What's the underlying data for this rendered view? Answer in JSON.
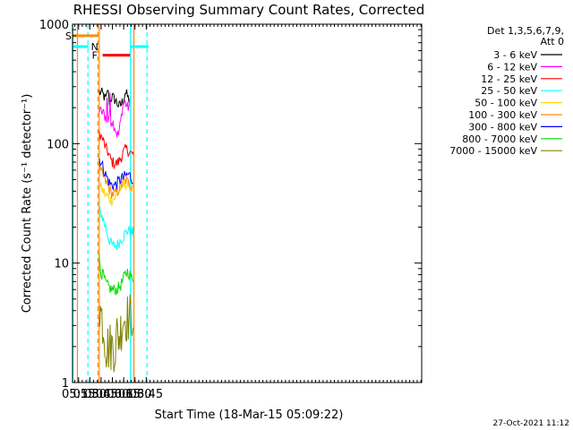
{
  "chart_data": {
    "type": "line",
    "title": "RHESSI Observing Summary Count Rates, Corrected",
    "xlabel": "Start Time (18-Mar-15 05:09:22)",
    "ylabel": "Corrected Count Rate (s⁻¹ detector⁻¹)",
    "yscale": "log",
    "xlim_min": [
      307,
      771
    ],
    "ylim": [
      1,
      1000
    ],
    "x_ticks": [
      {
        "label": "05:15",
        "min": 315
      },
      {
        "label": "05:30",
        "min": 330
      },
      {
        "label": "05:45",
        "min": 345
      },
      {
        "label": "06:00",
        "min": 360
      },
      {
        "label": "06:15",
        "min": 375
      },
      {
        "label": "06:30",
        "min": 390
      },
      {
        "label": "06:45",
        "min": 405
      }
    ],
    "y_ticks": [
      {
        "label": "1",
        "value": 1
      },
      {
        "label": "10",
        "value": 10
      },
      {
        "label": "100",
        "value": 100
      },
      {
        "label": "1000",
        "value": 1000
      }
    ],
    "legend_header": [
      "Det 1,3,5,6,7,9,",
      "Att 0"
    ],
    "series": [
      {
        "name": "3 - 6 keV",
        "color": "#000000",
        "points": [
          [
            342.5,
            270
          ],
          [
            345,
            265
          ],
          [
            348,
            255
          ],
          [
            350,
            240
          ],
          [
            352,
            235
          ],
          [
            354,
            290
          ],
          [
            356,
            225
          ],
          [
            358,
            240
          ],
          [
            360,
            245
          ],
          [
            363,
            235
          ],
          [
            366,
            220
          ],
          [
            369,
            205
          ],
          [
            372,
            215
          ],
          [
            375,
            235
          ],
          [
            377,
            270
          ],
          [
            379,
            255
          ],
          [
            381,
            240
          ],
          [
            383,
            230
          ]
        ]
      },
      {
        "name": "6 - 12 keV",
        "color": "#ff00ff",
        "points": [
          [
            342.5,
            185
          ],
          [
            345,
            185
          ],
          [
            348,
            180
          ],
          [
            350,
            170
          ],
          [
            352,
            165
          ],
          [
            353,
            250
          ],
          [
            354,
            160
          ],
          [
            356,
            175
          ],
          [
            357,
            240
          ],
          [
            358,
            155
          ],
          [
            360,
            155
          ],
          [
            363,
            140
          ],
          [
            366,
            120
          ],
          [
            368,
            118
          ],
          [
            370,
            140
          ],
          [
            372,
            170
          ],
          [
            374,
            215
          ],
          [
            376,
            225
          ],
          [
            378,
            215
          ],
          [
            380,
            200
          ],
          [
            382,
            205
          ],
          [
            383.5,
            230
          ]
        ]
      },
      {
        "name": "12 - 25 keV",
        "color": "#ff0000",
        "points": [
          [
            342.5,
            125
          ],
          [
            345,
            115
          ],
          [
            348,
            105
          ],
          [
            351,
            92
          ],
          [
            354,
            85
          ],
          [
            357,
            75
          ],
          [
            360,
            70
          ],
          [
            363,
            68
          ],
          [
            366,
            68
          ],
          [
            369,
            72
          ],
          [
            372,
            78
          ],
          [
            375,
            85
          ],
          [
            378,
            90
          ],
          [
            381,
            88
          ],
          [
            383.5,
            85
          ],
          [
            385,
            82
          ],
          [
            387,
            82
          ],
          [
            388.5,
            82
          ]
        ]
      },
      {
        "name": "25 - 50 keV",
        "color": "#00ffff",
        "points": [
          [
            342.5,
            28
          ],
          [
            345,
            26
          ],
          [
            348,
            23
          ],
          [
            351,
            20
          ],
          [
            354,
            17
          ],
          [
            357,
            15
          ],
          [
            360,
            14
          ],
          [
            363,
            14
          ],
          [
            366,
            14
          ],
          [
            369,
            15
          ],
          [
            372,
            16
          ],
          [
            375,
            17
          ],
          [
            378,
            18
          ],
          [
            381,
            19
          ],
          [
            383.5,
            18
          ],
          [
            385,
            18
          ],
          [
            387,
            18
          ],
          [
            388.5,
            18
          ]
        ]
      },
      {
        "name": "50 - 100 keV",
        "color": "#ffd700",
        "points": [
          [
            342.5,
            44
          ],
          [
            345,
            42
          ],
          [
            348,
            40
          ],
          [
            351,
            37
          ],
          [
            354,
            36
          ],
          [
            357,
            34
          ],
          [
            360,
            34
          ],
          [
            363,
            35
          ],
          [
            366,
            37
          ],
          [
            369,
            40
          ],
          [
            372,
            43
          ],
          [
            375,
            45
          ],
          [
            378,
            46
          ],
          [
            381,
            45
          ],
          [
            383.5,
            44
          ],
          [
            385,
            43
          ],
          [
            388.5,
            42
          ]
        ]
      },
      {
        "name": "100 - 300 keV",
        "color": "#ff8c00",
        "points": [
          [
            342.5,
            60
          ],
          [
            345,
            57
          ],
          [
            348,
            53
          ],
          [
            351,
            48
          ],
          [
            354,
            44
          ],
          [
            357,
            40
          ],
          [
            360,
            38
          ],
          [
            363,
            38
          ],
          [
            366,
            39
          ],
          [
            369,
            42
          ],
          [
            372,
            45
          ],
          [
            375,
            47
          ],
          [
            378,
            49
          ],
          [
            381,
            47
          ],
          [
            383.5,
            46
          ],
          [
            385,
            45
          ],
          [
            388.5,
            45
          ]
        ]
      },
      {
        "name": "300 - 800 keV",
        "color": "#0000ff",
        "points": [
          [
            342.5,
            75
          ],
          [
            345,
            70
          ],
          [
            348,
            62
          ],
          [
            351,
            55
          ],
          [
            354,
            50
          ],
          [
            357,
            46
          ],
          [
            360,
            45
          ],
          [
            363,
            45
          ],
          [
            366,
            46
          ],
          [
            369,
            49
          ],
          [
            372,
            51
          ],
          [
            375,
            52
          ],
          [
            378,
            54
          ],
          [
            381,
            55
          ],
          [
            383.5,
            54
          ],
          [
            385,
            52
          ],
          [
            388.5,
            50
          ]
        ]
      },
      {
        "name": "800 - 7000 keV",
        "color": "#00dd00",
        "points": [
          [
            342.5,
            11
          ],
          [
            344,
            9
          ],
          [
            346,
            8
          ],
          [
            348,
            8
          ],
          [
            350,
            7
          ],
          [
            353,
            6.5
          ],
          [
            356,
            6.2
          ],
          [
            359,
            6
          ],
          [
            362,
            6
          ],
          [
            365,
            6
          ],
          [
            368,
            6.2
          ],
          [
            371,
            6.5
          ],
          [
            374,
            7.2
          ],
          [
            377,
            8
          ],
          [
            380,
            8.5
          ],
          [
            383.5,
            8
          ],
          [
            385,
            7.5
          ],
          [
            388.5,
            7.2
          ]
        ]
      },
      {
        "name": "7000 - 15000 keV",
        "color": "#808000",
        "points": [
          [
            342.5,
            5
          ],
          [
            344,
            4
          ],
          [
            346,
            3.5
          ],
          [
            348,
            3
          ],
          [
            350,
            2.5
          ],
          [
            352,
            2
          ],
          [
            355,
            2
          ],
          [
            358,
            2
          ],
          [
            361,
            2
          ],
          [
            364,
            2
          ],
          [
            366,
            2.5
          ],
          [
            368,
            2.5
          ],
          [
            370,
            2.5
          ],
          [
            372,
            3
          ],
          [
            374,
            3.5
          ],
          [
            376,
            3.5
          ],
          [
            378,
            3.5
          ],
          [
            380,
            3.5
          ],
          [
            383.5,
            3.5
          ],
          [
            385,
            3.8
          ],
          [
            388.5,
            3.8
          ]
        ]
      }
    ],
    "bars": [
      {
        "label": "S",
        "color": "#ff8c00",
        "x0": 307,
        "x1": 341.5,
        "y": 800
      },
      {
        "label": "N",
        "color": "#00ffff",
        "x0": 307,
        "x1": 328,
        "y": 650
      },
      {
        "label": "F",
        "color": "#ff0000",
        "x0": 347,
        "x1": 383.5,
        "y": 550
      },
      {
        "label": "",
        "color": "#00ffff",
        "x0": 384,
        "x1": 408,
        "y": 650
      }
    ],
    "vlines": [
      {
        "x": 307.5,
        "color": "#00ffff",
        "style": "solid"
      },
      {
        "x": 313.5,
        "color": "#ff8c00",
        "style": "solid"
      },
      {
        "x": 327.5,
        "color": "#00ffff",
        "style": "dashed"
      },
      {
        "x": 340.8,
        "color": "#ff8c00",
        "style": "dashed"
      },
      {
        "x": 342.5,
        "color": "#ff8c00",
        "style": "solid"
      },
      {
        "x": 384,
        "color": "#00ffff",
        "style": "solid"
      },
      {
        "x": 388.6,
        "color": "#ff8c00",
        "style": "solid"
      },
      {
        "x": 406,
        "color": "#00ffff",
        "style": "dashed"
      }
    ]
  },
  "timestamp": "27-Oct-2021 11:12"
}
